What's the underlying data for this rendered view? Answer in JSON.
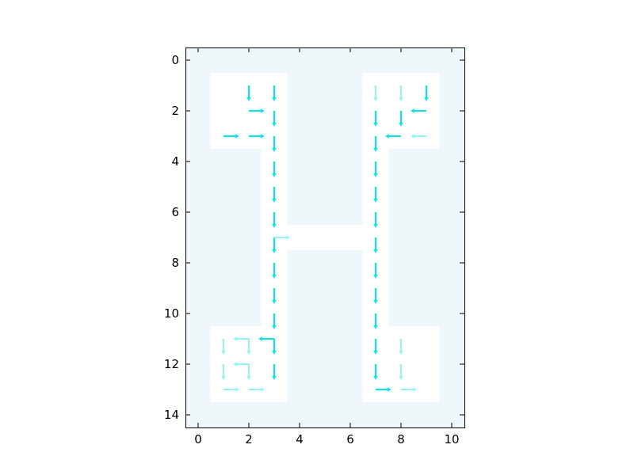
{
  "chart_data": {
    "type": "quiver",
    "xlim": [
      -0.5,
      10.5
    ],
    "ylim": [
      14.5,
      -0.5
    ],
    "y_inverted": true,
    "xticks": [
      "0",
      "2",
      "4",
      "6",
      "8",
      "10"
    ],
    "yticks": [
      "0",
      "2",
      "4",
      "6",
      "8",
      "10",
      "12",
      "14"
    ],
    "grid": false,
    "colors": {
      "obstacle": "#eef7fa",
      "free": "#ffffff",
      "arrow_strong": "#00e5ee",
      "arrow_weak": "#8ff3f7",
      "axes": "#000000"
    },
    "free_cells": {
      "rows": [
        {
          "row": 1,
          "cols": [
            1,
            2,
            3,
            7,
            8,
            9
          ]
        },
        {
          "row": 2,
          "cols": [
            1,
            2,
            3,
            7,
            8,
            9
          ]
        },
        {
          "row": 3,
          "cols": [
            1,
            2,
            3,
            7,
            8,
            9
          ]
        },
        {
          "row": 4,
          "cols": [
            3,
            7
          ]
        },
        {
          "row": 5,
          "cols": [
            3,
            7
          ]
        },
        {
          "row": 6,
          "cols": [
            3,
            7
          ]
        },
        {
          "row": 7,
          "cols": [
            3,
            4,
            5,
            6,
            7
          ]
        },
        {
          "row": 8,
          "cols": [
            3,
            7
          ]
        },
        {
          "row": 9,
          "cols": [
            3,
            7
          ]
        },
        {
          "row": 10,
          "cols": [
            3,
            7
          ]
        },
        {
          "row": 11,
          "cols": [
            1,
            2,
            3,
            7,
            8,
            9
          ]
        },
        {
          "row": 12,
          "cols": [
            1,
            2,
            3,
            7,
            8,
            9
          ]
        },
        {
          "row": 13,
          "cols": [
            1,
            2,
            3,
            7,
            8,
            9
          ]
        }
      ]
    },
    "arrows": [
      {
        "x": 2,
        "y": 1,
        "dir": "down",
        "strength": "strong"
      },
      {
        "x": 3,
        "y": 1,
        "dir": "down",
        "strength": "strong"
      },
      {
        "x": 2,
        "y": 2,
        "dir": "right",
        "strength": "strong"
      },
      {
        "x": 3,
        "y": 2,
        "dir": "down",
        "strength": "strong"
      },
      {
        "x": 1,
        "y": 3,
        "dir": "right",
        "strength": "strong"
      },
      {
        "x": 2,
        "y": 3,
        "dir": "right",
        "strength": "strong"
      },
      {
        "x": 3,
        "y": 3,
        "dir": "down",
        "strength": "strong"
      },
      {
        "x": 3,
        "y": 4,
        "dir": "down",
        "strength": "strong"
      },
      {
        "x": 3,
        "y": 5,
        "dir": "down",
        "strength": "strong"
      },
      {
        "x": 3,
        "y": 6,
        "dir": "down",
        "strength": "strong"
      },
      {
        "x": 3,
        "y": 7,
        "dir": "down",
        "strength": "strong"
      },
      {
        "x": 3,
        "y": 7,
        "dir": "right",
        "strength": "weak"
      },
      {
        "x": 3,
        "y": 8,
        "dir": "down",
        "strength": "strong"
      },
      {
        "x": 3,
        "y": 9,
        "dir": "down",
        "strength": "strong"
      },
      {
        "x": 3,
        "y": 10,
        "dir": "down",
        "strength": "strong"
      },
      {
        "x": 1,
        "y": 11,
        "dir": "down",
        "strength": "weak"
      },
      {
        "x": 2,
        "y": 11,
        "dir": "left",
        "strength": "weak"
      },
      {
        "x": 2,
        "y": 11,
        "dir": "down",
        "strength": "weak"
      },
      {
        "x": 3,
        "y": 11,
        "dir": "left",
        "strength": "strong"
      },
      {
        "x": 3,
        "y": 11,
        "dir": "down",
        "strength": "strong"
      },
      {
        "x": 1,
        "y": 12,
        "dir": "down",
        "strength": "weak"
      },
      {
        "x": 2,
        "y": 12,
        "dir": "left",
        "strength": "weak"
      },
      {
        "x": 2,
        "y": 12,
        "dir": "down",
        "strength": "weak"
      },
      {
        "x": 3,
        "y": 12,
        "dir": "down",
        "strength": "strong"
      },
      {
        "x": 1,
        "y": 13,
        "dir": "right",
        "strength": "weak"
      },
      {
        "x": 2,
        "y": 13,
        "dir": "right",
        "strength": "weak"
      },
      {
        "x": 7,
        "y": 1,
        "dir": "down",
        "strength": "weak"
      },
      {
        "x": 8,
        "y": 1,
        "dir": "down",
        "strength": "weak"
      },
      {
        "x": 9,
        "y": 1,
        "dir": "down",
        "strength": "strong"
      },
      {
        "x": 7,
        "y": 2,
        "dir": "down",
        "strength": "strong"
      },
      {
        "x": 8,
        "y": 2,
        "dir": "down",
        "strength": "strong"
      },
      {
        "x": 9,
        "y": 2,
        "dir": "left",
        "strength": "strong"
      },
      {
        "x": 7,
        "y": 3,
        "dir": "down",
        "strength": "strong"
      },
      {
        "x": 8,
        "y": 3,
        "dir": "left",
        "strength": "strong"
      },
      {
        "x": 9,
        "y": 3,
        "dir": "left",
        "strength": "weak"
      },
      {
        "x": 7,
        "y": 4,
        "dir": "down",
        "strength": "strong"
      },
      {
        "x": 7,
        "y": 5,
        "dir": "down",
        "strength": "strong"
      },
      {
        "x": 7,
        "y": 6,
        "dir": "down",
        "strength": "strong"
      },
      {
        "x": 7,
        "y": 7,
        "dir": "down",
        "strength": "strong"
      },
      {
        "x": 7,
        "y": 8,
        "dir": "down",
        "strength": "strong"
      },
      {
        "x": 7,
        "y": 9,
        "dir": "down",
        "strength": "strong"
      },
      {
        "x": 7,
        "y": 10,
        "dir": "down",
        "strength": "strong"
      },
      {
        "x": 7,
        "y": 11,
        "dir": "down",
        "strength": "strong"
      },
      {
        "x": 8,
        "y": 11,
        "dir": "down",
        "strength": "weak"
      },
      {
        "x": 7,
        "y": 12,
        "dir": "down",
        "strength": "strong"
      },
      {
        "x": 8,
        "y": 12,
        "dir": "down",
        "strength": "weak"
      },
      {
        "x": 7,
        "y": 13,
        "dir": "right",
        "strength": "strong"
      },
      {
        "x": 8,
        "y": 13,
        "dir": "right",
        "strength": "weak"
      }
    ]
  }
}
